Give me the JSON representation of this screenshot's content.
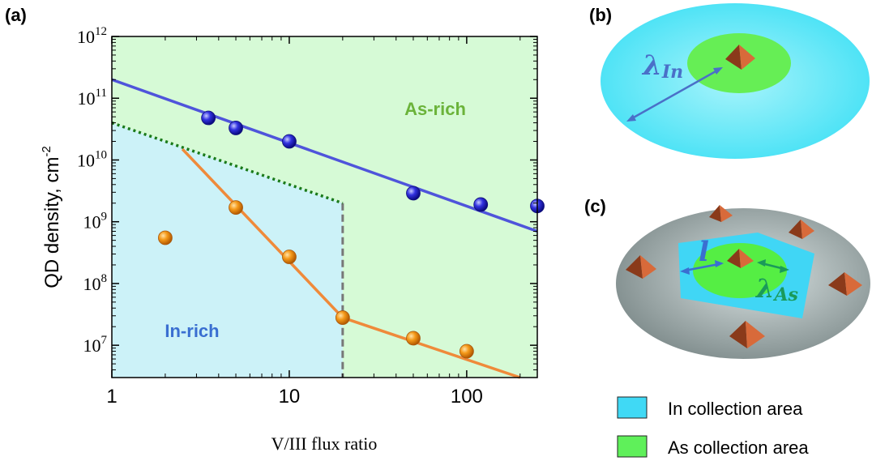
{
  "panels": {
    "a": "(a)",
    "b": "(b)",
    "c": "(c)"
  },
  "chart_data": {
    "type": "scatter",
    "xlabel": "V/III flux ratio",
    "ylabel": "QD density, cm",
    "ylabel_sup": "-2",
    "x_scale": "log",
    "y_scale": "log",
    "xlim": [
      1,
      250
    ],
    "ylim": [
      3000000,
      1000000000000
    ],
    "x_ticks": [
      {
        "value": 1,
        "label": "1"
      },
      {
        "value": 10,
        "label": "10"
      },
      {
        "value": 100,
        "label": "100"
      }
    ],
    "y_ticks": [
      {
        "value": 10000000,
        "base": "10",
        "exp": "7"
      },
      {
        "value": 100000000,
        "base": "10",
        "exp": "8"
      },
      {
        "value": 1000000000,
        "base": "10",
        "exp": "9"
      },
      {
        "value": 10000000000,
        "base": "10",
        "exp": "10"
      },
      {
        "value": 100000000000,
        "base": "10",
        "exp": "11"
      },
      {
        "value": 1000000000000,
        "base": "10",
        "exp": "12"
      }
    ],
    "regions": [
      {
        "label": "As-rich",
        "color": "#d6fad6",
        "label_color": "#6bb33a"
      },
      {
        "label": "In-rich",
        "color": "#ccf2f8",
        "label_color": "#3a6fd1"
      }
    ],
    "boundary_x": 20,
    "series": [
      {
        "color": "#1f1fd6",
        "line_color": "#4f54db",
        "points": [
          [
            3.5,
            48000000000
          ],
          [
            5,
            33000000000
          ],
          [
            10,
            20000000000
          ],
          [
            50,
            2900000000
          ],
          [
            120,
            1900000000
          ],
          [
            250,
            1800000000
          ]
        ],
        "fit": [
          [
            1,
            200000000000
          ],
          [
            250,
            700000000
          ]
        ]
      },
      {
        "color": "#f08a10",
        "line_color": "#ef8a3a",
        "points": [
          [
            2,
            550000000
          ],
          [
            5,
            1700000000
          ],
          [
            10,
            270000000
          ],
          [
            20,
            28000000
          ],
          [
            50,
            13000000
          ],
          [
            100,
            8000000
          ]
        ],
        "fit": [
          [
            2.5,
            15000000000
          ],
          [
            20,
            28000000
          ],
          [
            200,
            3000000
          ]
        ]
      }
    ],
    "dotted_line": [
      [
        1,
        40000000000
      ],
      [
        20,
        2000000000
      ]
    ],
    "dotted_color": "#1a7a1a",
    "dashed_color": "#777777"
  },
  "diagram_b": {
    "lambda_base": "λ",
    "lambda_sub": "In",
    "outer_color": "#5ce6f7",
    "inner_color": "#66ee55",
    "arrow_color": "#4a70c8"
  },
  "diagram_c": {
    "l_label": "l",
    "lambda_base": "λ",
    "lambda_sub": "As",
    "disk_color": "#9aa7a7",
    "in_area_color": "#40d6f5",
    "as_area_color": "#55ee44",
    "pyramid_color": "#c65a2e"
  },
  "legend": [
    {
      "label": "In collection area",
      "color": "#40d9f5"
    },
    {
      "label": "As collection area",
      "color": "#5ff05a"
    }
  ]
}
